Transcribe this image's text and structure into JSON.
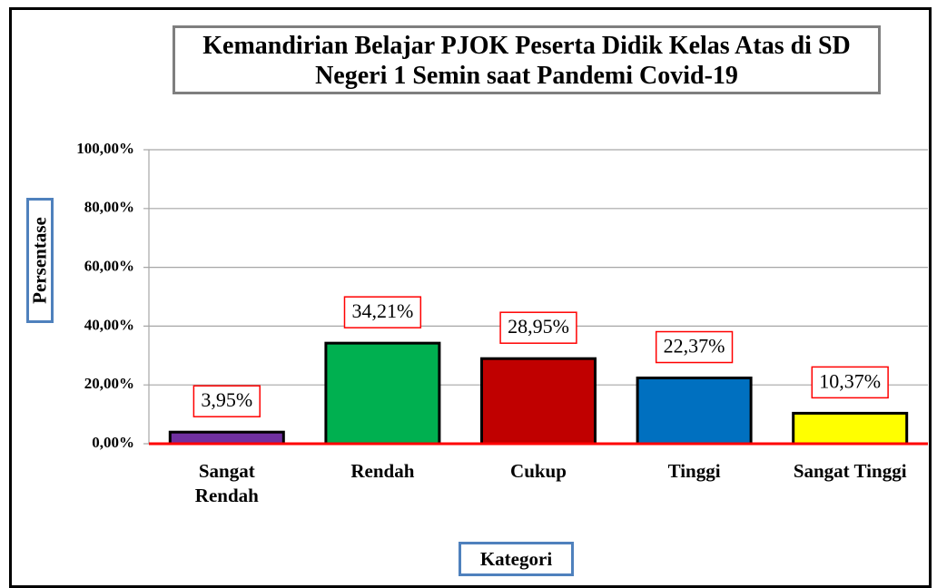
{
  "chart_data": {
    "type": "bar",
    "title": "Kemandirian Belajar PJOK Peserta Didik Kelas Atas di SD Negeri 1 Semin saat Pandemi Covid-19",
    "x_label": "Kategori",
    "y_label": "Persentase",
    "categories": [
      "Sangat Rendah",
      "Rendah",
      "Cukup",
      "Tinggi",
      "Sangat Tinggi"
    ],
    "values": [
      3.95,
      34.21,
      28.95,
      22.37,
      10.37
    ],
    "value_labels": [
      "3,95%",
      "34,21%",
      "28,95%",
      "22,37%",
      "10,37%"
    ],
    "colors": [
      "#7030a0",
      "#00b050",
      "#c00000",
      "#0070c0",
      "#ffff00"
    ],
    "ylim": [
      0,
      100
    ],
    "yticks": [
      {
        "value": 0,
        "label": "0,00%"
      },
      {
        "value": 20,
        "label": "20,00%"
      },
      {
        "value": 40,
        "label": "40,00%"
      },
      {
        "value": 60,
        "label": "60,00%"
      },
      {
        "value": 80,
        "label": "80,00%"
      },
      {
        "value": 100,
        "label": "100,00%"
      }
    ],
    "grid": true
  }
}
